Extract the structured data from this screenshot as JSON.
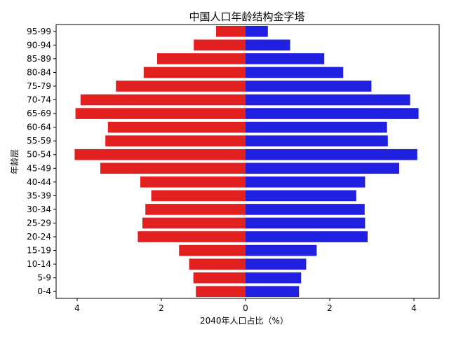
{
  "chart_data": {
    "type": "bar",
    "orientation": "horizontal",
    "title": "中国人口年龄结构金字塔",
    "xlabel": "2040年人口占比（%）",
    "ylabel": "年龄层",
    "xlim": [
      -4.5,
      4.6
    ],
    "xticks": [
      {
        "value": -4,
        "label": "4"
      },
      {
        "value": -2,
        "label": "2"
      },
      {
        "value": 0,
        "label": "0"
      },
      {
        "value": 2,
        "label": "2"
      },
      {
        "value": 4,
        "label": "4"
      }
    ],
    "categories": [
      "0-4",
      "5-9",
      "10-14",
      "15-19",
      "20-24",
      "25-29",
      "30-34",
      "35-39",
      "40-44",
      "45-49",
      "50-54",
      "55-59",
      "60-64",
      "65-69",
      "70-74",
      "75-79",
      "80-84",
      "85-89",
      "90-94",
      "95-99"
    ],
    "series": [
      {
        "side": "left",
        "color": "#e32020",
        "values": [
          1.18,
          1.24,
          1.34,
          1.58,
          2.56,
          2.45,
          2.38,
          2.24,
          2.5,
          3.45,
          4.06,
          3.33,
          3.27,
          4.04,
          3.92,
          3.08,
          2.42,
          2.1,
          1.23,
          0.7
        ]
      },
      {
        "side": "right",
        "color": "#2020e0",
        "values": [
          1.27,
          1.32,
          1.44,
          1.69,
          2.9,
          2.84,
          2.83,
          2.63,
          2.84,
          3.65,
          4.08,
          3.38,
          3.36,
          4.11,
          3.91,
          2.99,
          2.32,
          1.87,
          1.06,
          0.53
        ]
      }
    ],
    "grid": false,
    "legend": "none"
  }
}
